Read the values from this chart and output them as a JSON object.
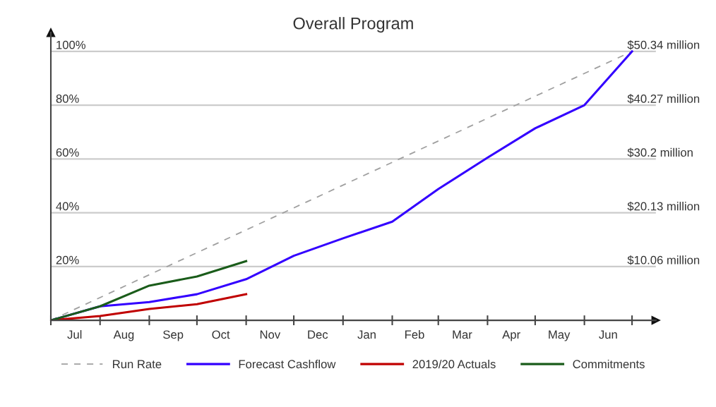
{
  "chart_data": {
    "type": "line",
    "title": "Overall Program",
    "x": [
      "2019-07-01",
      "2019-08-01",
      "2019-09-01",
      "2019-10-01",
      "2019-11-01",
      "2019-12-01",
      "2020-01-01",
      "2020-02-01",
      "2020-03-01",
      "2020-04-01",
      "2020-05-01",
      "2020-06-01",
      "2020-07-01"
    ],
    "xlim": [
      "2019-07-01",
      "2020-07-16"
    ],
    "xticks": [
      {
        "value": "2019-07-01",
        "label": null
      },
      {
        "value": "2019-07-16",
        "label": "Jul"
      },
      {
        "value": "2019-08-01",
        "label": null
      },
      {
        "value": "2019-08-16",
        "label": "Aug"
      },
      {
        "value": "2019-09-01",
        "label": null
      },
      {
        "value": "2019-09-16",
        "label": "Sep"
      },
      {
        "value": "2019-10-01",
        "label": null
      },
      {
        "value": "2019-10-16",
        "label": "Oct"
      },
      {
        "value": "2019-11-01",
        "label": null
      },
      {
        "value": "2019-11-16",
        "label": "Nov"
      },
      {
        "value": "2019-12-01",
        "label": null
      },
      {
        "value": "2019-12-16",
        "label": "Dec"
      },
      {
        "value": "2020-01-01",
        "label": null
      },
      {
        "value": "2020-01-16",
        "label": "Jan"
      },
      {
        "value": "2020-02-01",
        "label": null
      },
      {
        "value": "2020-02-15",
        "label": "Feb"
      },
      {
        "value": "2020-03-01",
        "label": null
      },
      {
        "value": "2020-03-16",
        "label": "Mar"
      },
      {
        "value": "2020-04-01",
        "label": null
      },
      {
        "value": "2020-04-16",
        "label": "Apr"
      },
      {
        "value": "2020-05-01",
        "label": null
      },
      {
        "value": "2020-05-16",
        "label": "May"
      },
      {
        "value": "2020-06-01",
        "label": null
      },
      {
        "value": "2020-06-16",
        "label": "Jun"
      },
      {
        "value": "2020-07-01",
        "label": null
      }
    ],
    "ylim": [
      0,
      107
    ],
    "yticks": [
      {
        "value": 20,
        "label": "20%"
      },
      {
        "value": 40,
        "label": "40%"
      },
      {
        "value": 60,
        "label": "60%"
      },
      {
        "value": 80,
        "label": "80%"
      },
      {
        "value": 100,
        "label": "100%"
      }
    ],
    "y2lim": [
      0,
      53.86
    ],
    "y2ticks": [
      {
        "value": 10.06,
        "label": "$10.06 million"
      },
      {
        "value": 20.13,
        "label": "$20.13 million"
      },
      {
        "value": 30.2,
        "label": "$30.2 million"
      },
      {
        "value": 40.27,
        "label": "$40.27 million"
      },
      {
        "value": 50.34,
        "label": "$50.34 million"
      }
    ],
    "grid": "y",
    "legend": "bottom",
    "series": [
      {
        "name": "Run Rate",
        "color": "#a0a0a0",
        "line_style": "dashed",
        "x": [
          "2019-07-01",
          "2020-07-01"
        ],
        "values": [
          0,
          100
        ]
      },
      {
        "name": "Forecast Cashflow",
        "color": "#3300ff",
        "values": [
          0,
          5.2,
          6.8,
          9.7,
          15.3,
          24,
          30.5,
          36.7,
          48.8,
          60.5,
          71.4,
          80,
          100
        ]
      },
      {
        "name": "2019/20 Actuals",
        "color": "#c00000",
        "values": [
          0,
          1.6,
          4.2,
          6,
          9.7,
          null,
          null,
          null,
          null,
          null,
          null,
          null,
          null
        ]
      },
      {
        "name": "Commitments",
        "color": "#1a5c1a",
        "values": [
          0,
          5.2,
          12.9,
          16.3,
          22,
          null,
          null,
          null,
          null,
          null,
          null,
          null,
          null
        ]
      }
    ]
  }
}
